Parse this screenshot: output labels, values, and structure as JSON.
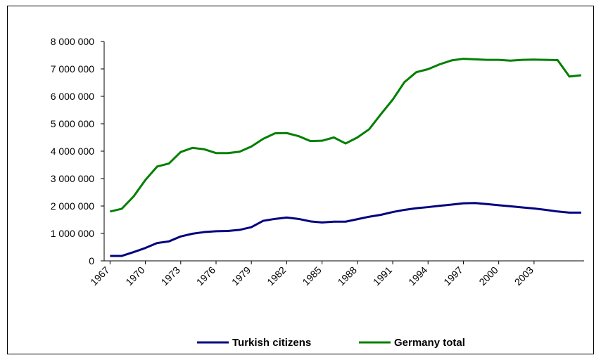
{
  "chart_data": {
    "type": "line",
    "x": [
      1967,
      1968,
      1969,
      1970,
      1971,
      1972,
      1973,
      1974,
      1975,
      1976,
      1977,
      1978,
      1979,
      1980,
      1981,
      1982,
      1983,
      1984,
      1985,
      1986,
      1987,
      1988,
      1989,
      1990,
      1991,
      1992,
      1993,
      1994,
      1995,
      1996,
      1997,
      1998,
      1999,
      2000,
      2001,
      2002,
      2003,
      2004,
      2005,
      2006,
      2007
    ],
    "series": [
      {
        "name": "Turkish citizens",
        "color": "#000080",
        "values": [
          180000,
          180000,
          320000,
          470000,
          650000,
          710000,
          890000,
          990000,
          1050000,
          1080000,
          1090000,
          1130000,
          1230000,
          1460000,
          1530000,
          1580000,
          1530000,
          1440000,
          1400000,
          1430000,
          1430000,
          1520000,
          1610000,
          1680000,
          1780000,
          1860000,
          1920000,
          1960000,
          2010000,
          2050000,
          2100000,
          2110000,
          2070000,
          2030000,
          1990000,
          1950000,
          1910000,
          1860000,
          1800000,
          1760000,
          1760000
        ]
      },
      {
        "name": "Germany total",
        "color": "#008000",
        "values": [
          1800000,
          1900000,
          2350000,
          2950000,
          3440000,
          3550000,
          3970000,
          4120000,
          4070000,
          3930000,
          3930000,
          3980000,
          4170000,
          4450000,
          4650000,
          4660000,
          4550000,
          4370000,
          4380000,
          4500000,
          4280000,
          4500000,
          4800000,
          5350000,
          5880000,
          6520000,
          6880000,
          6990000,
          7170000,
          7310000,
          7370000,
          7350000,
          7330000,
          7330000,
          7300000,
          7330000,
          7340000,
          7330000,
          7320000,
          6720000,
          6770000
        ]
      }
    ],
    "xlim": [
      1966.5,
      2007.25
    ],
    "xticks": [
      1967,
      1970,
      1973,
      1976,
      1979,
      1982,
      1985,
      1988,
      1991,
      1994,
      1997,
      2000,
      2003
    ],
    "ylim": [
      0,
      8000000
    ],
    "yticks": [
      {
        "value": 0,
        "label": "0"
      },
      {
        "value": 1000000,
        "label": "1 000 000"
      },
      {
        "value": 2000000,
        "label": "2 000 000"
      },
      {
        "value": 3000000,
        "label": "3 000 000"
      },
      {
        "value": 4000000,
        "label": "4 000 000"
      },
      {
        "value": 5000000,
        "label": "5 000 000"
      },
      {
        "value": 6000000,
        "label": "6 000 000"
      },
      {
        "value": 7000000,
        "label": "7 000 000"
      },
      {
        "value": 8000000,
        "label": "8 000 000"
      }
    ],
    "grid": false,
    "legend": "bottom"
  }
}
